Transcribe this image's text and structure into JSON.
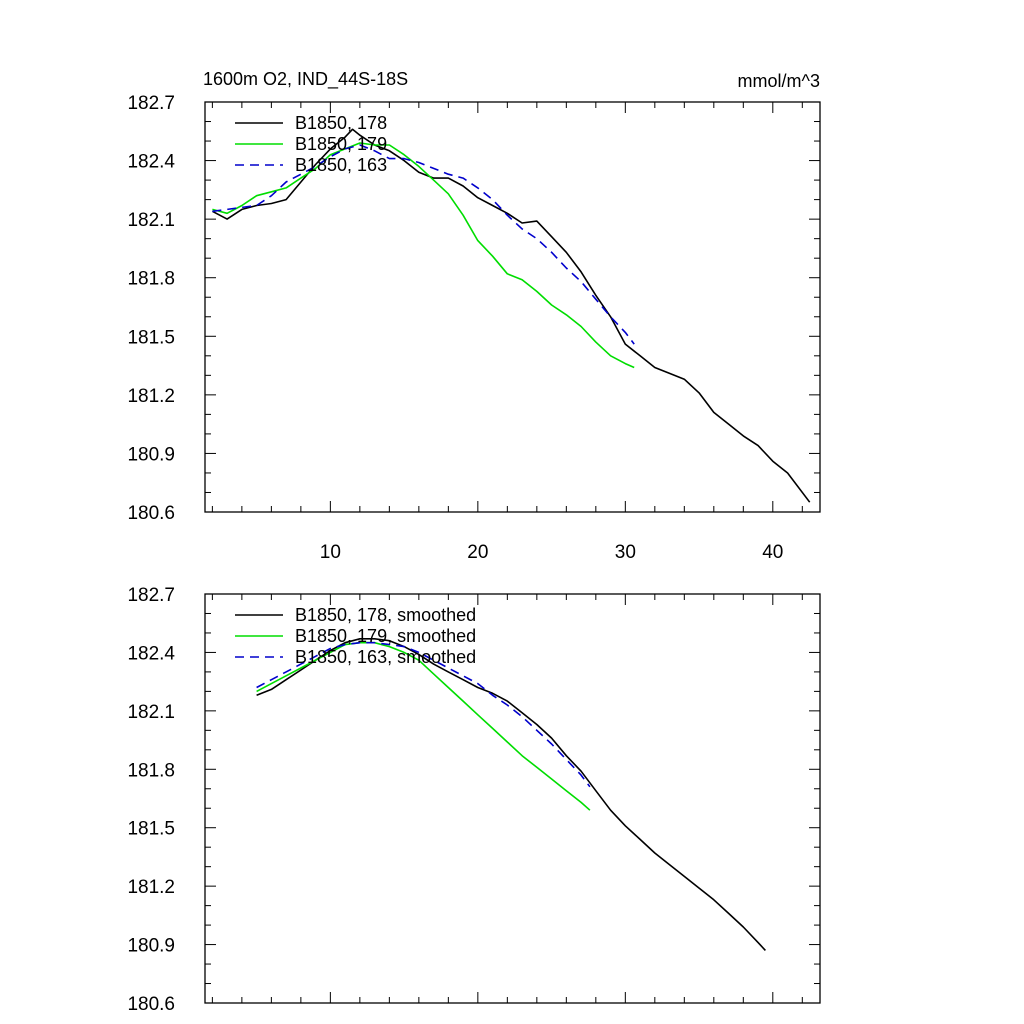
{
  "chart_data": [
    {
      "type": "line",
      "title": "1600m O2, IND_44S-18S",
      "units": "mmol/m^3",
      "xlim": [
        1.5,
        43.2
      ],
      "ylim": [
        180.6,
        182.7
      ],
      "xticks": [
        10,
        20,
        30,
        40
      ],
      "xtick_labels": [
        "10",
        "20",
        "30",
        "40"
      ],
      "yticks": [
        180.6,
        180.9,
        181.2,
        181.5,
        181.8,
        182.1,
        182.4,
        182.7
      ],
      "ytick_labels": [
        "180.6",
        "180.9",
        "181.2",
        "181.5",
        "181.8",
        "182.1",
        "182.4",
        "182.7"
      ],
      "legend": "top-left",
      "series": [
        {
          "name": "B1850, 178",
          "color": "#000000",
          "dash": "solid",
          "x": [
            2,
            3,
            4,
            5,
            6,
            7,
            8,
            9,
            10,
            11,
            11.5,
            12,
            13,
            14,
            15,
            16,
            17,
            18,
            19,
            20,
            21,
            22,
            23,
            24,
            25,
            26,
            27,
            28,
            29,
            30,
            31,
            32,
            33,
            34,
            35,
            36,
            37,
            38,
            39,
            40,
            41,
            42.5
          ],
          "y": [
            182.14,
            182.1,
            182.15,
            182.17,
            182.18,
            182.2,
            182.29,
            182.38,
            182.46,
            182.52,
            182.56,
            182.53,
            182.48,
            182.45,
            182.4,
            182.34,
            182.31,
            182.31,
            182.27,
            182.21,
            182.17,
            182.13,
            182.08,
            182.09,
            182.01,
            181.93,
            181.83,
            181.71,
            181.6,
            181.46,
            181.4,
            181.34,
            181.31,
            181.28,
            181.21,
            181.11,
            181.05,
            180.99,
            180.94,
            180.86,
            180.8,
            180.65
          ]
        },
        {
          "name": "B1850, 179",
          "color": "#00dd00",
          "dash": "solid",
          "x": [
            2,
            3,
            4,
            5,
            6,
            7,
            8,
            9,
            10,
            11,
            12,
            13,
            14,
            15,
            16,
            17,
            18,
            19,
            20,
            21,
            22,
            23,
            24,
            25,
            26,
            27,
            28,
            29,
            30,
            30.6
          ],
          "y": [
            182.15,
            182.13,
            182.17,
            182.22,
            182.24,
            182.26,
            182.31,
            182.36,
            182.43,
            182.46,
            182.49,
            182.48,
            182.48,
            182.43,
            182.37,
            182.3,
            182.23,
            182.12,
            181.99,
            181.91,
            181.82,
            181.79,
            181.73,
            181.66,
            181.61,
            181.55,
            181.47,
            181.4,
            181.36,
            181.34
          ]
        },
        {
          "name": "B1850, 163",
          "color": "#0000cc",
          "dash": "dashed",
          "x": [
            2,
            3,
            4,
            5,
            6,
            7,
            8,
            9,
            10,
            11,
            12,
            13,
            14,
            15,
            16,
            17,
            18,
            19,
            20,
            21,
            22,
            23,
            24,
            25,
            26,
            27,
            28,
            29,
            30,
            30.6
          ],
          "y": [
            182.14,
            182.15,
            182.16,
            182.17,
            182.22,
            182.29,
            182.33,
            182.37,
            182.42,
            182.46,
            182.48,
            182.45,
            182.41,
            182.41,
            182.39,
            182.36,
            182.33,
            182.31,
            182.26,
            182.2,
            182.12,
            182.05,
            182.0,
            181.93,
            181.85,
            181.78,
            181.69,
            181.6,
            181.52,
            181.46
          ]
        }
      ]
    },
    {
      "type": "line",
      "xlim": [
        1.5,
        43.2
      ],
      "ylim": [
        180.6,
        182.7
      ],
      "xticks": [
        10,
        20,
        30,
        40
      ],
      "yticks": [
        180.6,
        180.9,
        181.2,
        181.5,
        181.8,
        182.1,
        182.4,
        182.7
      ],
      "ytick_labels": [
        "180.6",
        "180.9",
        "181.2",
        "181.5",
        "181.8",
        "182.1",
        "182.4",
        "182.7"
      ],
      "legend": "top-left",
      "series": [
        {
          "name": "B1850, 178, smoothed",
          "color": "#000000",
          "dash": "solid",
          "x": [
            5,
            6,
            7,
            8,
            9,
            10,
            11,
            12,
            13,
            14,
            15,
            16,
            17,
            18,
            19,
            20,
            21,
            22,
            23,
            24,
            25,
            26,
            27,
            28,
            29,
            30,
            31,
            32,
            33,
            34,
            35,
            36,
            37,
            38,
            39,
            39.5
          ],
          "y": [
            182.18,
            182.21,
            182.26,
            182.31,
            182.36,
            182.41,
            182.45,
            182.47,
            182.47,
            182.46,
            182.43,
            182.39,
            182.34,
            182.3,
            182.26,
            182.22,
            182.19,
            182.15,
            182.09,
            182.03,
            181.96,
            181.87,
            181.79,
            181.69,
            181.59,
            181.51,
            181.44,
            181.37,
            181.31,
            181.25,
            181.19,
            181.13,
            181.06,
            180.99,
            180.91,
            180.87
          ]
        },
        {
          "name": "B1850, 179, smoothed",
          "color": "#00dd00",
          "dash": "solid",
          "x": [
            5,
            6,
            7,
            8,
            9,
            10,
            11,
            12,
            13,
            14,
            15,
            16,
            17,
            18,
            19,
            20,
            21,
            22,
            23,
            24,
            25,
            26,
            27,
            27.6
          ],
          "y": [
            182.2,
            182.24,
            182.28,
            182.32,
            182.36,
            182.4,
            182.44,
            182.45,
            182.45,
            182.43,
            182.4,
            182.36,
            182.29,
            182.22,
            182.15,
            182.08,
            182.01,
            181.94,
            181.87,
            181.81,
            181.75,
            181.69,
            181.63,
            181.59
          ]
        },
        {
          "name": "B1850, 163, smoothed",
          "color": "#0000cc",
          "dash": "dashed",
          "x": [
            5,
            6,
            7,
            8,
            9,
            10,
            11,
            12,
            13,
            14,
            15,
            16,
            17,
            18,
            19,
            20,
            21,
            22,
            23,
            24,
            25,
            26,
            27,
            27.6
          ],
          "y": [
            182.22,
            182.26,
            182.3,
            182.34,
            182.38,
            182.42,
            182.44,
            182.45,
            182.45,
            182.44,
            182.43,
            182.4,
            182.36,
            182.32,
            182.28,
            182.24,
            182.18,
            182.13,
            182.07,
            182.0,
            181.93,
            181.85,
            181.77,
            181.71
          ]
        }
      ]
    }
  ]
}
